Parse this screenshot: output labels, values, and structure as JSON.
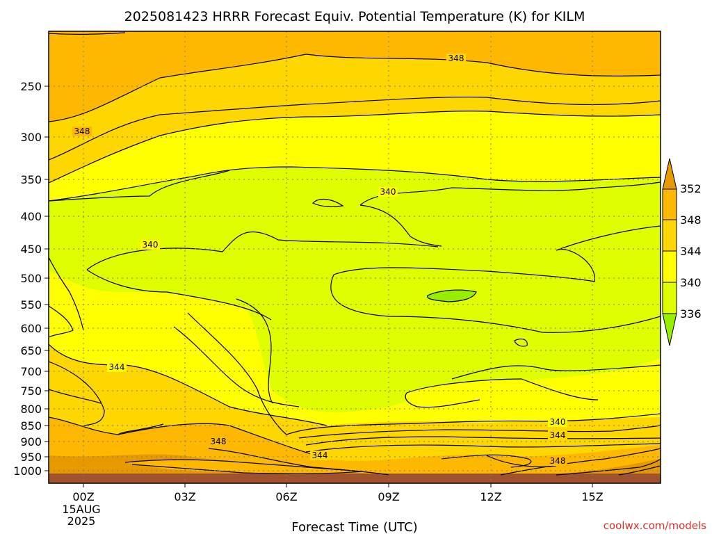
{
  "chart_data": {
    "type": "contour",
    "title": "2025081423 HRRR Forecast Equiv. Potential Temperature (K) for KILM",
    "xlabel": "Forecast Time (UTC)",
    "credit": "coolwx.com/models",
    "x_ticks": [
      "00Z",
      "03Z",
      "06Z",
      "09Z",
      "12Z",
      "15Z"
    ],
    "x_date_label": [
      "15AUG",
      "2025"
    ],
    "y_ticks": [
      250,
      300,
      350,
      400,
      450,
      500,
      550,
      600,
      650,
      700,
      750,
      800,
      850,
      900,
      950,
      1000
    ],
    "y_scale": "log-pressure (inverted)",
    "grid": true,
    "contour_interval_K": 4,
    "contour_labels": [
      {
        "value": "348",
        "time": "09Z-12Z",
        "pressure": 235
      },
      {
        "value": "348",
        "time": "00Z",
        "pressure": 290
      },
      {
        "value": "340",
        "time": "09Z",
        "pressure": 372
      },
      {
        "value": "340",
        "time": "02Z",
        "pressure": 440
      },
      {
        "value": "344",
        "time": "01Z",
        "pressure": 690
      },
      {
        "value": "340",
        "time": "14Z",
        "pressure": 845
      },
      {
        "value": "344",
        "time": "14Z",
        "pressure": 885
      },
      {
        "value": "348",
        "time": "04Z",
        "pressure": 905
      },
      {
        "value": "344",
        "time": "07Z",
        "pressure": 955
      },
      {
        "value": "348",
        "time": "14Z",
        "pressure": 980
      }
    ],
    "colorbar": {
      "ticks": [
        352,
        348,
        344,
        340,
        336
      ],
      "colors": {
        "above_352": "#e69a00",
        "348_352": "#ffb800",
        "344_348": "#ffd700",
        "340_344": "#ffff00",
        "336_340": "#dfff00",
        "below_336": "#99ee00"
      }
    },
    "surface_color": "#a0522d"
  }
}
